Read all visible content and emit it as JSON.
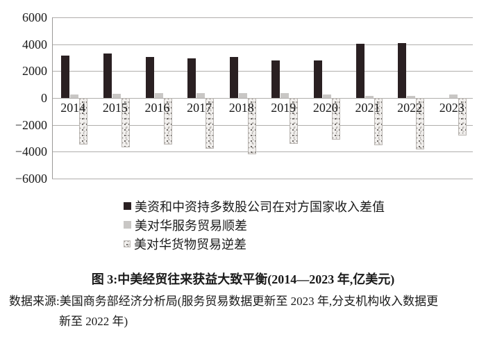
{
  "chart_data": {
    "type": "bar",
    "title": "图 3:中美经贸往来获益大致平衡(2014—2023 年,亿美元)",
    "unit": "亿美元",
    "categories": [
      "2014",
      "2015",
      "2016",
      "2017",
      "2018",
      "2019",
      "2020",
      "2021",
      "2022",
      "2023"
    ],
    "series": [
      {
        "key": "income-gap",
        "name": "美资和中资持多数股公司在对方国家收入差值",
        "style": "solid-black",
        "color": "#2a2022",
        "values": [
          3150,
          3300,
          3050,
          2960,
          3060,
          2770,
          2790,
          4020,
          4070,
          null
        ]
      },
      {
        "key": "services-surplus",
        "name": "美对华服务贸易顺差",
        "style": "solid-gray",
        "color": "#c9c7c5",
        "values": [
          250,
          300,
          340,
          385,
          390,
          360,
          250,
          160,
          140,
          265
        ]
      },
      {
        "key": "goods-deficit",
        "name": "美对华货物贸易逆差",
        "style": "speckled",
        "color": "#f2f0ee",
        "values": [
          -3450,
          -3670,
          -3470,
          -3750,
          -4180,
          -3420,
          -3080,
          -3530,
          -3830,
          -2790
        ]
      }
    ],
    "ylim": [
      -6000,
      6000
    ],
    "ytick_interval": 2000,
    "yticks": [
      "6000",
      "4000",
      "2000",
      "0",
      "−2000",
      "−4000",
      "−6000"
    ],
    "grid": true,
    "gridline_color": "#b0aeac",
    "legend_position": "below-left"
  },
  "caption": {
    "title": "图 3:中美经贸往来获益大致平衡(2014—2023 年,亿美元)"
  },
  "source": {
    "line1": "数据来源:美国商务部经济分析局(服务贸易数据更新至 2023 年,分支机构收入数据更",
    "line2": "新至 2022 年)"
  }
}
